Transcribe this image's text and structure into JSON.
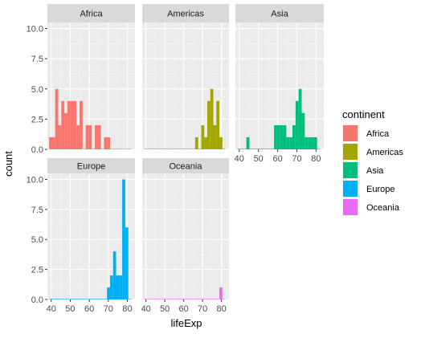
{
  "chart_data": {
    "type": "bar",
    "subtype": "faceted-histogram",
    "xlabel": "lifeExp",
    "ylabel": "count",
    "xlim": [
      38,
      84
    ],
    "ylim": [
      0,
      10.5
    ],
    "x_ticks": [
      40,
      50,
      60,
      70,
      80
    ],
    "y_ticks": [
      0,
      2.5,
      5,
      7.5,
      10
    ],
    "y_tick_labels": [
      "0.0",
      "2.5",
      "5.0",
      "7.5",
      "10.0"
    ],
    "bin_edges": [
      38.9,
      40.5,
      42.1,
      43.7,
      45.3,
      46.9,
      48.5,
      50.1,
      51.7,
      53.3,
      54.9,
      56.5,
      58.1,
      59.7,
      61.3,
      62.9,
      64.5,
      66.1,
      67.7,
      69.3,
      70.9,
      72.5,
      74.1,
      75.7,
      77.3,
      78.9,
      80.5,
      82.1
    ],
    "grid": true,
    "legend": {
      "title": "continent",
      "position": "right"
    },
    "series": [
      {
        "name": "Africa",
        "color": "#F8766D",
        "values": [
          1,
          1,
          5,
          2,
          4,
          3,
          4,
          4,
          4,
          2,
          4,
          0,
          2,
          2,
          0,
          2,
          2,
          0,
          1,
          1,
          0,
          0,
          0,
          0,
          0,
          0,
          0
        ]
      },
      {
        "name": "Americas",
        "color": "#A3A500",
        "values": [
          0,
          0,
          0,
          0,
          0,
          0,
          0,
          0,
          0,
          0,
          0,
          0,
          0,
          0,
          0,
          0,
          0,
          1,
          0,
          2,
          1,
          4,
          5,
          2,
          4,
          1,
          0
        ]
      },
      {
        "name": "Asia",
        "color": "#00BF7D",
        "values": [
          0,
          0,
          0,
          1,
          0,
          0,
          0,
          0,
          0,
          0,
          0,
          0,
          2,
          2,
          2,
          2,
          1,
          1,
          2,
          4,
          5,
          3,
          1,
          1,
          1,
          1,
          0
        ]
      },
      {
        "name": "Europe",
        "color": "#00B0F6",
        "values": [
          0,
          0,
          0,
          0,
          0,
          0,
          0,
          0,
          0,
          0,
          0,
          0,
          0,
          0,
          0,
          0,
          0,
          0,
          0,
          1,
          2,
          4,
          2,
          2,
          10,
          6,
          0
        ]
      },
      {
        "name": "Oceania",
        "color": "#E76BF3",
        "values": [
          0,
          0,
          0,
          0,
          0,
          0,
          0,
          0,
          0,
          0,
          0,
          0,
          0,
          0,
          0,
          0,
          0,
          0,
          0,
          0,
          0,
          0,
          0,
          0,
          0,
          1,
          0
        ]
      }
    ]
  }
}
